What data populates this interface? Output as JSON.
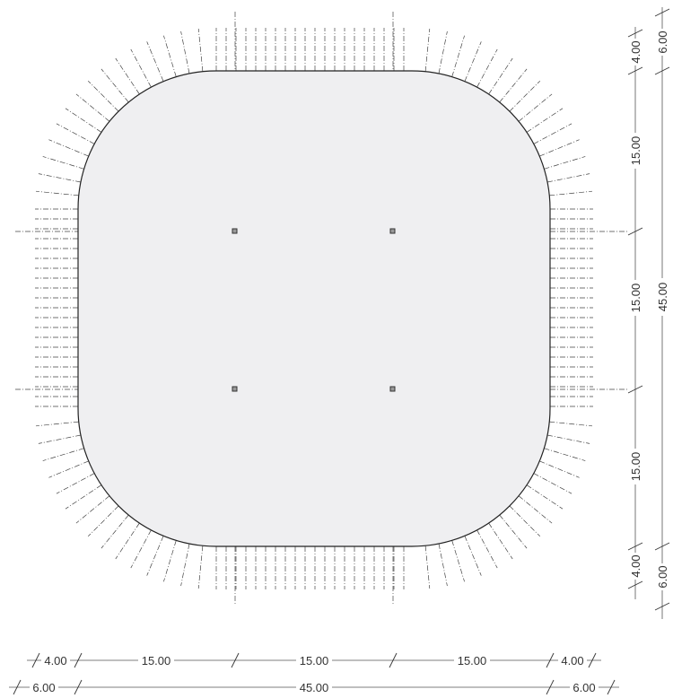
{
  "drawing": {
    "fill_color": "#efeff1",
    "outline_color": "#222222"
  },
  "dimensions": {
    "bottom_inner": [
      "4.00",
      "15.00",
      "15.00",
      "15.00",
      "4.00"
    ],
    "bottom_outer": [
      "6.00",
      "45.00",
      "6.00"
    ],
    "right_inner": [
      "4.00",
      "15.00",
      "15.00",
      "15.00",
      "4.00"
    ],
    "right_outer": [
      "6.00",
      "45.00",
      "6.00"
    ]
  }
}
